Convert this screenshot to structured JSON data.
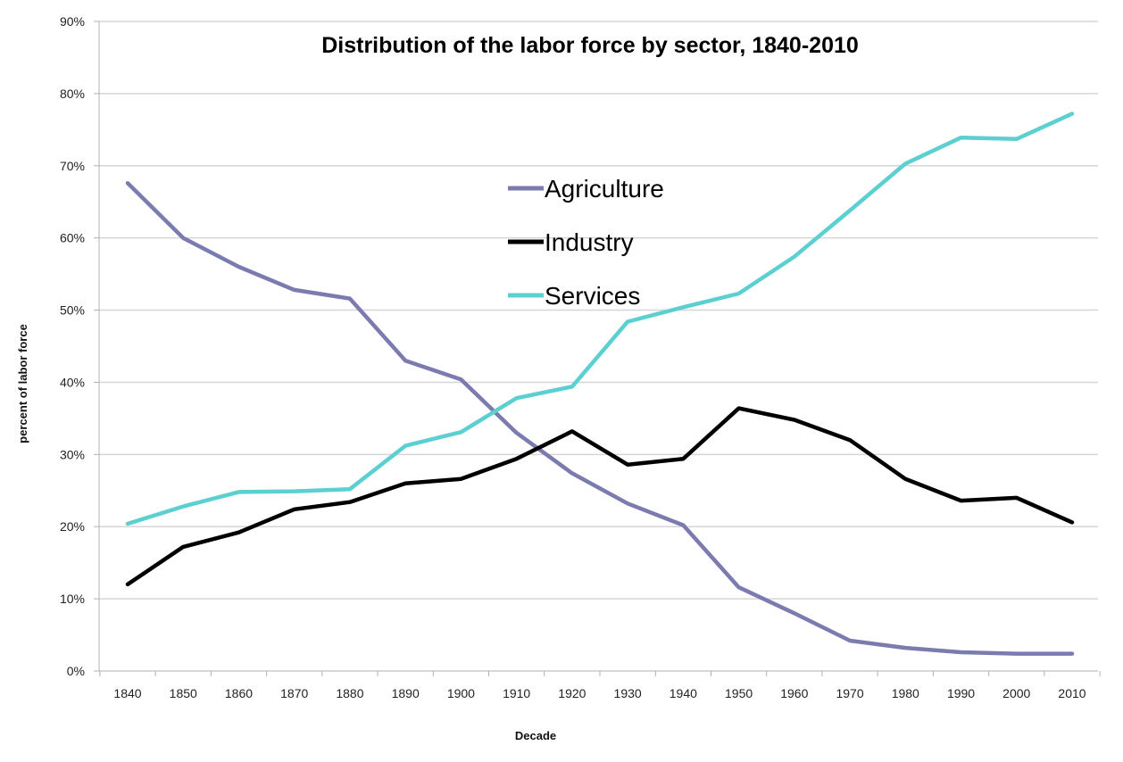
{
  "chart_data": {
    "type": "line",
    "title": "Distribution of the labor force by sector, 1840-2010",
    "xlabel": "Decade",
    "ylabel": "percent of labor force",
    "ylim": [
      0,
      90
    ],
    "y_ticks": [
      "0%",
      "10%",
      "20%",
      "30%",
      "40%",
      "50%",
      "60%",
      "70%",
      "80%",
      "90%"
    ],
    "y_tick_values": [
      0,
      10,
      20,
      30,
      40,
      50,
      60,
      70,
      80,
      90
    ],
    "grid": true,
    "legend_position": "center-top",
    "x": [
      "1840",
      "1850",
      "1860",
      "1870",
      "1880",
      "1890",
      "1900",
      "1910",
      "1920",
      "1930",
      "1940",
      "1950",
      "1960",
      "1970",
      "1980",
      "1990",
      "2000",
      "2010"
    ],
    "series": [
      {
        "name": "Agriculture",
        "color": "#7b7bb0",
        "values": [
          67.6,
          60.0,
          56.0,
          52.8,
          51.6,
          43.0,
          40.4,
          33.0,
          27.4,
          23.2,
          20.2,
          11.6,
          8.0,
          4.2,
          3.2,
          2.6,
          2.4,
          2.4
        ]
      },
      {
        "name": "Industry",
        "color": "#000000",
        "values": [
          12.0,
          17.2,
          19.2,
          22.4,
          23.4,
          26.0,
          26.6,
          29.4,
          33.2,
          28.6,
          29.4,
          36.4,
          34.8,
          32.0,
          26.6,
          23.6,
          24.0,
          20.6
        ]
      },
      {
        "name": "Services",
        "color": "#5ccfd0",
        "values": [
          20.4,
          22.8,
          24.8,
          24.9,
          25.2,
          31.2,
          33.1,
          37.8,
          39.4,
          48.4,
          50.4,
          52.3,
          57.4,
          63.8,
          70.3,
          73.9,
          73.7,
          77.2
        ]
      }
    ]
  }
}
